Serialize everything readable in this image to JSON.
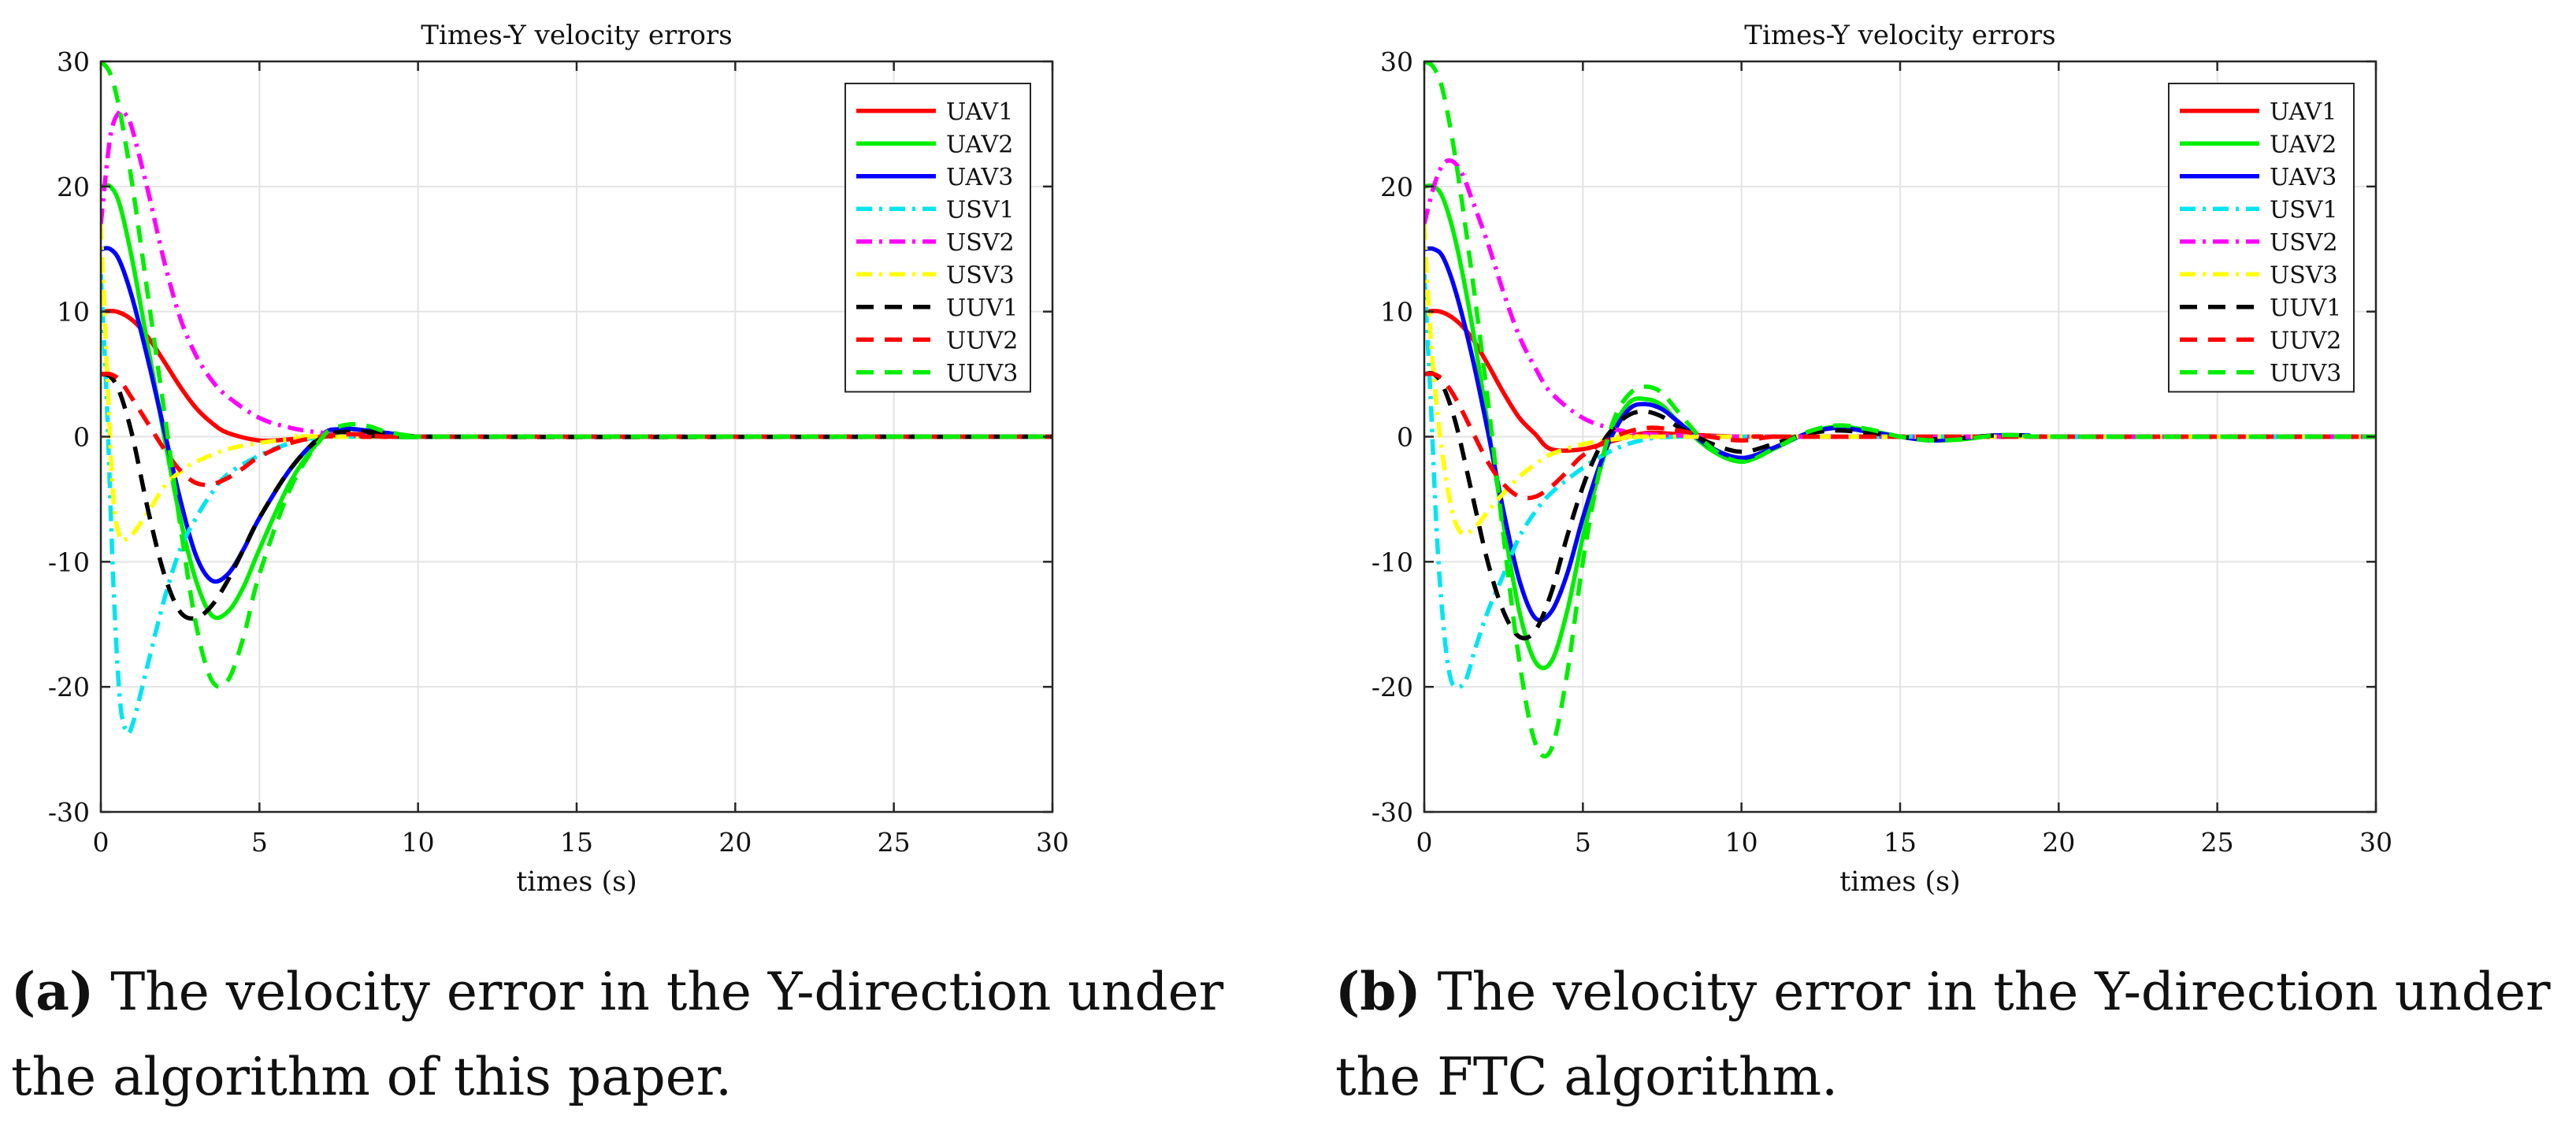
{
  "chart_data": [
    {
      "type": "line",
      "title": "Times-Y velocity errors",
      "xlabel": "times (s)",
      "ylabel": "",
      "xlim": [
        0,
        30
      ],
      "ylim": [
        -30,
        30
      ],
      "xticks": [
        0,
        5,
        10,
        15,
        20,
        25,
        30
      ],
      "yticks": [
        -30,
        -20,
        -10,
        0,
        10,
        20,
        30
      ],
      "grid": true,
      "legend_position": "top-right",
      "caption_label": "(a)",
      "caption_text": "The velocity error in the Y-direction under the algorithm of this paper.",
      "series": [
        {
          "name": "UAV1",
          "color": "#ff0000",
          "style": "solid",
          "x": [
            0,
            0.5,
            1,
            1.5,
            2,
            2.5,
            3,
            3.5,
            4,
            5,
            6,
            7,
            8,
            10,
            12,
            30
          ],
          "y": [
            10,
            10,
            9.3,
            7.9,
            6,
            4,
            2.3,
            1.1,
            0.3,
            -0.3,
            -0.2,
            0,
            0.05,
            0,
            0,
            0
          ]
        },
        {
          "name": "UAV2",
          "color": "#00ee00",
          "style": "solid",
          "x": [
            0,
            0.3,
            0.6,
            1,
            1.5,
            2,
            2.5,
            3,
            3.5,
            4,
            4.5,
            5,
            6,
            7,
            7.5,
            8,
            9,
            10,
            11,
            30
          ],
          "y": [
            20,
            20,
            18.5,
            14,
            7,
            0,
            -6.5,
            -11.5,
            -14.3,
            -14,
            -12,
            -9,
            -3.5,
            0,
            0.6,
            0.6,
            0.3,
            0,
            0,
            0
          ]
        },
        {
          "name": "UAV3",
          "color": "#0000ff",
          "style": "solid",
          "x": [
            0,
            0.3,
            0.6,
            1,
            1.5,
            2,
            2.5,
            3,
            3.5,
            4,
            4.5,
            5,
            6,
            7,
            7.5,
            8,
            9,
            10,
            11,
            30
          ],
          "y": [
            15,
            15,
            14,
            11,
            6,
            0.5,
            -5,
            -9.5,
            -11.5,
            -11,
            -9,
            -6.5,
            -2.5,
            0.2,
            0.6,
            0.6,
            0.3,
            0,
            0,
            0
          ]
        },
        {
          "name": "USV1",
          "color": "#00e5ee",
          "style": "dashdot",
          "x": [
            0,
            0.2,
            0.4,
            0.6,
            0.8,
            1,
            1.5,
            2,
            2.5,
            3,
            3.5,
            4,
            5,
            6,
            7,
            8,
            10,
            30
          ],
          "y": [
            13,
            2,
            -12,
            -21,
            -23.5,
            -23,
            -18,
            -13,
            -9,
            -6.5,
            -4.5,
            -3,
            -1.5,
            -0.5,
            0,
            0,
            0,
            0
          ]
        },
        {
          "name": "USV2",
          "color": "#ff00ff",
          "style": "dashdot",
          "x": [
            0,
            0.3,
            0.6,
            0.8,
            1,
            1.5,
            2,
            2.5,
            3,
            3.5,
            4,
            5,
            6,
            7,
            8,
            9,
            10,
            30
          ],
          "y": [
            17,
            24,
            26,
            25.7,
            24.5,
            19.5,
            14,
            9.5,
            6.5,
            4.5,
            3.2,
            1.5,
            0.7,
            0.3,
            0.1,
            0,
            0,
            0
          ]
        },
        {
          "name": "USV3",
          "color": "#ffff00",
          "style": "dashdot",
          "x": [
            0,
            0.2,
            0.4,
            0.6,
            0.8,
            1,
            1.5,
            2,
            2.5,
            3,
            4,
            5,
            6,
            7,
            8,
            30
          ],
          "y": [
            17,
            5,
            -5,
            -8,
            -8.2,
            -7.8,
            -6,
            -4,
            -2.8,
            -2,
            -1,
            -0.5,
            -0.2,
            0,
            0,
            0
          ]
        },
        {
          "name": "UUV1",
          "color": "#000000",
          "style": "dashed",
          "x": [
            0,
            0.3,
            0.6,
            1,
            1.5,
            2,
            2.5,
            3,
            3.5,
            4,
            4.5,
            5,
            6,
            7,
            8,
            9,
            10,
            30
          ],
          "y": [
            5,
            4.8,
            3.5,
            0,
            -6,
            -11,
            -14,
            -14.5,
            -13.5,
            -11.5,
            -9,
            -6.5,
            -2.5,
            0,
            0.4,
            0.3,
            0,
            0
          ]
        },
        {
          "name": "UUV2",
          "color": "#ff0000",
          "style": "dashed",
          "x": [
            0,
            0.3,
            0.6,
            1,
            1.5,
            2,
            2.5,
            3,
            3.5,
            4,
            4.5,
            5,
            6,
            7,
            8,
            9,
            10,
            30
          ],
          "y": [
            5,
            5,
            4.5,
            3,
            1,
            -1,
            -2.7,
            -3.7,
            -3.8,
            -3.3,
            -2.5,
            -1.6,
            -0.5,
            0,
            0.2,
            0,
            0,
            0
          ]
        },
        {
          "name": "UUV3",
          "color": "#00ee00",
          "style": "dashed",
          "x": [
            0,
            0.3,
            0.6,
            1,
            1.5,
            2,
            2.5,
            3,
            3.5,
            4,
            4.5,
            5,
            6,
            7,
            7.5,
            8,
            8.5,
            9,
            10,
            11,
            30
          ],
          "y": [
            30,
            29,
            26,
            20,
            11,
            2,
            -7,
            -15,
            -19.5,
            -19.5,
            -16,
            -11,
            -4,
            0,
            0.8,
            1,
            0.8,
            0.4,
            0,
            0,
            0
          ]
        }
      ]
    },
    {
      "type": "line",
      "title": "Times-Y velocity errors",
      "xlabel": "times (s)",
      "ylabel": "",
      "xlim": [
        0,
        30
      ],
      "ylim": [
        -30,
        30
      ],
      "xticks": [
        0,
        5,
        10,
        15,
        20,
        25,
        30
      ],
      "yticks": [
        -30,
        -20,
        -10,
        0,
        10,
        20,
        30
      ],
      "grid": true,
      "legend_position": "top-right",
      "caption_label": "(b)",
      "caption_text": "The velocity error in the Y-direction under the FTC algorithm.",
      "series": [
        {
          "name": "UAV1",
          "color": "#ff0000",
          "style": "solid",
          "x": [
            0,
            0.5,
            1,
            1.5,
            2,
            2.5,
            3,
            3.5,
            4,
            5,
            6,
            7,
            8,
            10,
            12,
            30
          ],
          "y": [
            10,
            10,
            9.3,
            7.9,
            5.8,
            3.5,
            1.5,
            0.2,
            -1,
            -1,
            -0.3,
            0.3,
            0.2,
            0,
            0,
            0
          ]
        },
        {
          "name": "UAV2",
          "color": "#00ee00",
          "style": "solid",
          "x": [
            0,
            0.3,
            0.6,
            1,
            1.5,
            2,
            2.5,
            3,
            3.5,
            4,
            4.5,
            5,
            5.5,
            6,
            6.5,
            7,
            7.5,
            8,
            9,
            10,
            11,
            12,
            13,
            14,
            15,
            16,
            17,
            18,
            19,
            20,
            30
          ],
          "y": [
            20,
            20,
            19,
            15.5,
            9,
            1,
            -7,
            -14,
            -18,
            -18,
            -14,
            -8,
            -3,
            0.8,
            2.8,
            3,
            2.5,
            1.2,
            -1,
            -2,
            -1,
            0.2,
            0.8,
            0.5,
            0,
            -0.3,
            -0.2,
            0.1,
            0.1,
            0,
            0
          ]
        },
        {
          "name": "UAV3",
          "color": "#0000ff",
          "style": "solid",
          "x": [
            0,
            0.3,
            0.6,
            1,
            1.5,
            2,
            2.5,
            3,
            3.5,
            4,
            4.5,
            5,
            5.5,
            6,
            6.5,
            7,
            7.5,
            8,
            9,
            10,
            11,
            12,
            13,
            14,
            15,
            16,
            17,
            18,
            19,
            20,
            30
          ],
          "y": [
            15,
            15,
            14.3,
            11.5,
            6.5,
            0.5,
            -6,
            -11.5,
            -14.5,
            -14,
            -11,
            -6.5,
            -2.5,
            0.5,
            2.3,
            2.6,
            2.2,
            1.2,
            -0.8,
            -1.7,
            -0.9,
            0.2,
            0.7,
            0.4,
            0,
            -0.3,
            -0.1,
            0.1,
            0.1,
            0,
            0
          ]
        },
        {
          "name": "USV1",
          "color": "#00e5ee",
          "style": "dashdot",
          "x": [
            0,
            0.2,
            0.4,
            0.6,
            0.8,
            1,
            1.3,
            1.6,
            2,
            2.5,
            3,
            3.5,
            4,
            5,
            6,
            7,
            8,
            10,
            30
          ],
          "y": [
            13,
            3,
            -8,
            -15,
            -19,
            -20,
            -19.5,
            -17,
            -14,
            -11,
            -8,
            -6,
            -4.5,
            -2.5,
            -1,
            -0.2,
            0,
            0,
            0
          ]
        },
        {
          "name": "USV2",
          "color": "#ff00ff",
          "style": "dashdot",
          "x": [
            0,
            0.3,
            0.6,
            0.9,
            1.2,
            1.5,
            2,
            2.5,
            3,
            3.5,
            4,
            5,
            6,
            7,
            8,
            9,
            10,
            30
          ],
          "y": [
            17,
            20,
            21.8,
            22,
            21,
            19,
            15.5,
            11.5,
            8,
            5.5,
            3.5,
            1.5,
            0.6,
            0.2,
            0.1,
            0,
            0,
            0
          ]
        },
        {
          "name": "USV3",
          "color": "#ffff00",
          "style": "dashdot",
          "x": [
            0,
            0.2,
            0.5,
            0.8,
            1.1,
            1.5,
            2,
            2.5,
            3,
            3.5,
            4,
            5,
            6,
            7,
            8,
            30
          ],
          "y": [
            17,
            8,
            0,
            -5,
            -7.5,
            -7.5,
            -6,
            -4.5,
            -3.2,
            -2.2,
            -1.4,
            -0.6,
            -0.2,
            0,
            0,
            0
          ]
        },
        {
          "name": "UUV1",
          "color": "#000000",
          "style": "dashed",
          "x": [
            0,
            0.3,
            0.6,
            1,
            1.5,
            2,
            2.5,
            3,
            3.5,
            4,
            4.5,
            5,
            5.5,
            6,
            6.5,
            7,
            7.5,
            8,
            9,
            10,
            11,
            12,
            13,
            14,
            15,
            16,
            17,
            18,
            19,
            20,
            30
          ],
          "y": [
            5,
            5,
            4,
            1,
            -4.5,
            -10,
            -14,
            -16,
            -15.5,
            -12.5,
            -8,
            -4,
            -1,
            0.8,
            1.8,
            2,
            1.6,
            0.8,
            -0.5,
            -1.2,
            -0.6,
            0.2,
            0.5,
            0.3,
            0,
            -0.2,
            -0.1,
            0.1,
            0.1,
            0,
            0
          ]
        },
        {
          "name": "UUV2",
          "color": "#ff0000",
          "style": "dashed",
          "x": [
            0,
            0.3,
            0.6,
            1,
            1.5,
            2,
            2.5,
            3,
            3.5,
            4,
            4.5,
            5,
            6,
            7,
            8,
            9,
            10,
            11,
            12,
            30
          ],
          "y": [
            5,
            5,
            4.5,
            3,
            0.5,
            -2,
            -3.8,
            -4.8,
            -4.8,
            -4,
            -2.8,
            -1.5,
            0,
            0.7,
            0.5,
            0,
            -0.3,
            0,
            0,
            0
          ]
        },
        {
          "name": "UUV3",
          "color": "#00ee00",
          "style": "dashed",
          "x": [
            0,
            0.3,
            0.6,
            1,
            1.5,
            2,
            2.5,
            3,
            3.5,
            4,
            4.5,
            5,
            5.5,
            6,
            6.5,
            7,
            7.5,
            8,
            9,
            10,
            11,
            12,
            13,
            14,
            15,
            16,
            17,
            18,
            19,
            20,
            30
          ],
          "y": [
            30,
            29.5,
            27.5,
            22,
            13,
            3,
            -8,
            -18,
            -24.5,
            -25,
            -19,
            -10,
            -3,
            1.5,
            3.5,
            4,
            3.5,
            2,
            -0.8,
            -2,
            -1,
            0.3,
            0.9,
            0.6,
            0,
            -0.3,
            -0.2,
            0.1,
            0.1,
            0,
            0
          ]
        }
      ]
    }
  ]
}
